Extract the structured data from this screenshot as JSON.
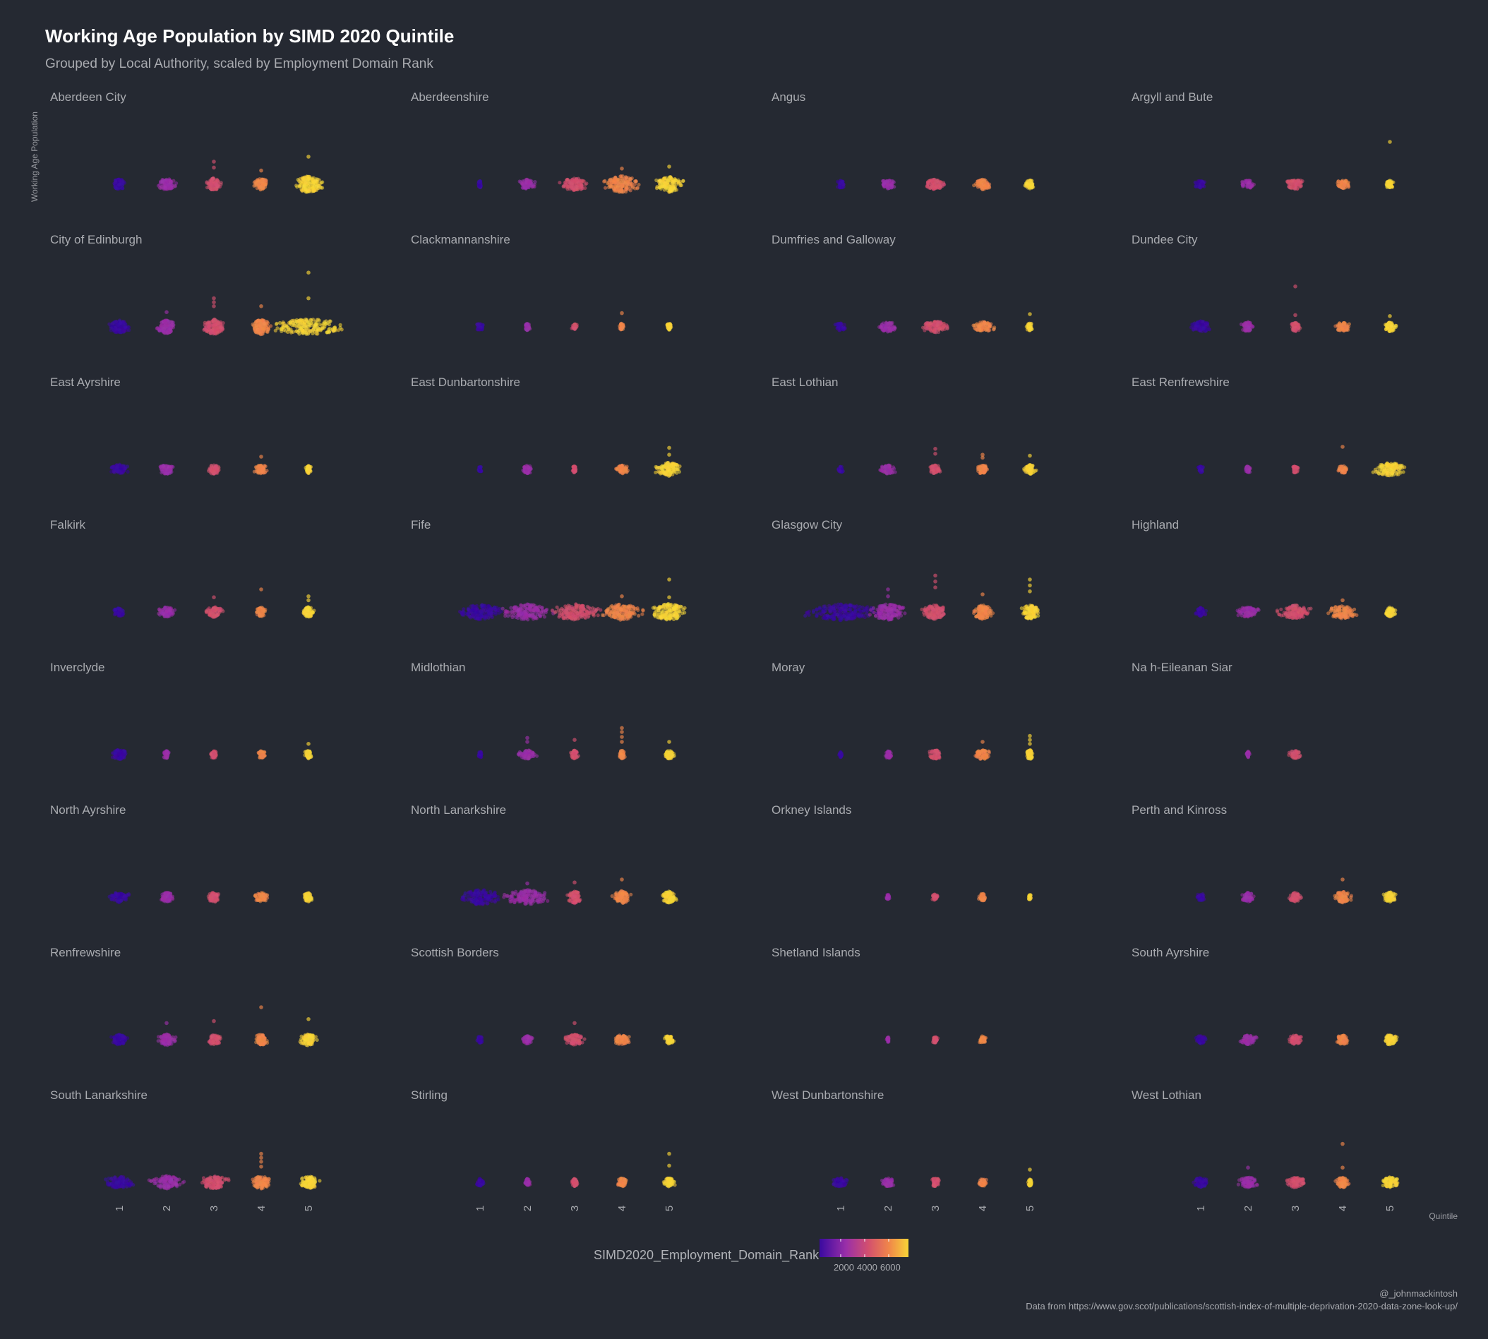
{
  "chart_data": {
    "type": "scatter",
    "title": "Working Age Population by SIMD 2020 Quintile",
    "subtitle": "Grouped by Local Authority, scaled by Employment Domain Rank",
    "ylabel": "Working Age Population",
    "xlabel": "Quintile",
    "x_categories": [
      "1",
      "2",
      "3",
      "4",
      "5"
    ],
    "legend": {
      "title": "SIMD2020_Employment_Domain_Rank",
      "ticks": [
        "2000",
        "4000",
        "6000"
      ],
      "position": "bottom",
      "colors": [
        "#3a0aa0",
        "#9a2fa8",
        "#d3506e",
        "#f0864a",
        "#f7d437"
      ]
    },
    "caption": [
      "@_johnmackintosh",
      "Data from https://www.gov.scot/publications/scottish-index-of-multiple-deprivation-2020-data-zone-look-up/"
    ],
    "grid": false,
    "facets": [
      {
        "name": "Aberdeen City",
        "spread": [
          0.35,
          0.45,
          0.4,
          0.4,
          0.8
        ],
        "density": [
          0.5,
          0.6,
          0.65,
          0.6,
          1.0
        ],
        "outliers": [
          [],
          [],
          [
            2.0,
            1.4
          ],
          [
            1.1
          ],
          [
            2.5
          ]
        ]
      },
      {
        "name": "Aberdeenshire",
        "spread": [
          0.1,
          0.45,
          0.7,
          1.0,
          0.75
        ],
        "density": [
          0.2,
          0.45,
          0.7,
          1.0,
          0.9
        ],
        "outliers": [
          [],
          [],
          [],
          [
            1.3
          ],
          [
            1.5
          ]
        ]
      },
      {
        "name": "Angus",
        "spread": [
          0.2,
          0.35,
          0.5,
          0.45,
          0.25
        ],
        "density": [
          0.25,
          0.4,
          0.5,
          0.5,
          0.35
        ],
        "outliers": [
          [],
          [],
          [],
          [],
          []
        ]
      },
      {
        "name": "Argyll and Bute",
        "spread": [
          0.3,
          0.35,
          0.5,
          0.35,
          0.25
        ],
        "density": [
          0.25,
          0.3,
          0.45,
          0.35,
          0.25
        ],
        "outliers": [
          [],
          [],
          [],
          [],
          [
            4.0
          ]
        ]
      },
      {
        "name": "City of Edinburgh",
        "spread": [
          0.55,
          0.5,
          0.55,
          0.55,
          1.85
        ],
        "density": [
          0.7,
          0.75,
          0.9,
          0.95,
          1.0
        ],
        "outliers": [
          [],
          [
            1.2
          ],
          [
            2.6,
            2.2,
            1.8
          ],
          [
            1.8
          ],
          [
            5.2,
            2.6
          ]
        ]
      },
      {
        "name": "Clackmannanshire",
        "spread": [
          0.2,
          0.15,
          0.15,
          0.15,
          0.15
        ],
        "density": [
          0.2,
          0.2,
          0.15,
          0.2,
          0.2
        ],
        "outliers": [
          [],
          [],
          [],
          [
            1.1
          ],
          []
        ]
      },
      {
        "name": "Dumfries and Galloway",
        "spread": [
          0.3,
          0.5,
          0.75,
          0.6,
          0.2
        ],
        "density": [
          0.25,
          0.45,
          0.6,
          0.45,
          0.25
        ],
        "outliers": [
          [],
          [],
          [],
          [],
          [
            1.0
          ]
        ]
      },
      {
        "name": "Dundee City",
        "spread": [
          0.5,
          0.35,
          0.25,
          0.4,
          0.35
        ],
        "density": [
          0.6,
          0.45,
          0.4,
          0.35,
          0.4
        ],
        "outliers": [
          [],
          [],
          [
            3.8,
            0.9
          ],
          [],
          [
            0.8
          ]
        ]
      },
      {
        "name": "East Ayrshire",
        "spread": [
          0.5,
          0.4,
          0.3,
          0.35,
          0.15
        ],
        "density": [
          0.45,
          0.4,
          0.45,
          0.35,
          0.3
        ],
        "outliers": [
          [],
          [],
          [],
          [
            1.0
          ],
          []
        ]
      },
      {
        "name": "East Dunbartonshire",
        "spread": [
          0.1,
          0.25,
          0.1,
          0.3,
          0.75
        ],
        "density": [
          0.1,
          0.3,
          0.2,
          0.35,
          0.8
        ],
        "outliers": [
          [],
          [],
          [],
          [],
          [
            1.9,
            1.2
          ]
        ]
      },
      {
        "name": "East Lothian",
        "spread": [
          0.15,
          0.4,
          0.3,
          0.3,
          0.35
        ],
        "density": [
          0.15,
          0.4,
          0.35,
          0.4,
          0.45
        ],
        "outliers": [
          [],
          [],
          [
            1.8,
            1.3
          ],
          [
            1.2,
            0.9
          ],
          [
            1.1
          ]
        ]
      },
      {
        "name": "East Renfrewshire",
        "spread": [
          0.15,
          0.15,
          0.15,
          0.25,
          0.85
        ],
        "density": [
          0.15,
          0.2,
          0.2,
          0.25,
          0.75
        ],
        "outliers": [
          [],
          [],
          [],
          [
            2.0
          ],
          []
        ]
      },
      {
        "name": "Falkirk",
        "spread": [
          0.3,
          0.45,
          0.45,
          0.25,
          0.3
        ],
        "density": [
          0.35,
          0.45,
          0.5,
          0.4,
          0.5
        ],
        "outliers": [
          [],
          [],
          [
            1.2
          ],
          [
            2.0
          ],
          [
            1.3,
            0.9
          ]
        ]
      },
      {
        "name": "Fife",
        "spread": [
          1.05,
          1.3,
          1.35,
          1.1,
          0.95
        ],
        "density": [
          0.9,
          0.95,
          0.95,
          0.95,
          1.0
        ],
        "outliers": [
          [],
          [],
          [],
          [
            1.3
          ],
          [
            3.0,
            1.2
          ]
        ]
      },
      {
        "name": "Glasgow City",
        "spread": [
          2.0,
          1.0,
          0.65,
          0.55,
          0.5
        ],
        "density": [
          1.0,
          0.95,
          0.85,
          0.8,
          0.8
        ],
        "outliers": [
          [],
          [
            2.0,
            1.3
          ],
          [
            3.4,
            2.8,
            2.2,
            -0.8
          ],
          [
            1.5,
            -0.8
          ],
          [
            3.0,
            2.4,
            1.8,
            -0.8
          ]
        ]
      },
      {
        "name": "Highland",
        "spread": [
          0.3,
          0.6,
          0.95,
          0.8,
          0.3
        ],
        "density": [
          0.35,
          0.5,
          0.75,
          0.7,
          0.4
        ],
        "outliers": [
          [],
          [],
          [],
          [
            0.9
          ],
          []
        ]
      },
      {
        "name": "Inverclyde",
        "spread": [
          0.45,
          0.15,
          0.2,
          0.2,
          0.2
        ],
        "density": [
          0.45,
          0.3,
          0.25,
          0.25,
          0.3
        ],
        "outliers": [
          [],
          [],
          [],
          [],
          [
            0.8
          ]
        ]
      },
      {
        "name": "Midlothian",
        "spread": [
          0.1,
          0.5,
          0.2,
          0.15,
          0.25
        ],
        "density": [
          0.15,
          0.4,
          0.35,
          0.35,
          0.35
        ],
        "outliers": [
          [],
          [
            1.4,
            1.0
          ],
          [
            1.2
          ],
          [
            2.4,
            2.0,
            1.5,
            1.0
          ],
          [
            1.0
          ]
        ]
      },
      {
        "name": "Moray",
        "spread": [
          0.1,
          0.2,
          0.35,
          0.45,
          0.2
        ],
        "density": [
          0.1,
          0.25,
          0.4,
          0.45,
          0.45
        ],
        "outliers": [
          [],
          [],
          [],
          [
            1.0
          ],
          [
            1.6,
            1.2,
            0.8
          ]
        ]
      },
      {
        "name": "Na h-Eileanan Siar",
        "spread": [
          0,
          0.1,
          0.35,
          0,
          0
        ],
        "density": [
          0,
          0.15,
          0.3,
          0,
          0
        ],
        "outliers": [
          [],
          [],
          [],
          [],
          []
        ]
      },
      {
        "name": "North Ayrshire",
        "spread": [
          0.55,
          0.35,
          0.3,
          0.35,
          0.3
        ],
        "density": [
          0.5,
          0.45,
          0.45,
          0.4,
          0.35
        ],
        "outliers": [
          [],
          [],
          [],
          [],
          []
        ]
      },
      {
        "name": "North Lanarkshire",
        "spread": [
          1.1,
          1.2,
          0.35,
          0.45,
          0.4
        ],
        "density": [
          0.9,
          0.85,
          0.65,
          0.7,
          0.6
        ],
        "outliers": [
          [],
          [
            1.1
          ],
          [
            1.2
          ],
          [
            1.5
          ],
          []
        ]
      },
      {
        "name": "Orkney Islands",
        "spread": [
          0,
          0.1,
          0.15,
          0.2,
          0.05
        ],
        "density": [
          0,
          0.12,
          0.15,
          0.25,
          0.05
        ],
        "outliers": [
          [],
          [],
          [],
          [],
          []
        ]
      },
      {
        "name": "Perth and Kinross",
        "spread": [
          0.2,
          0.35,
          0.35,
          0.45,
          0.35
        ],
        "density": [
          0.25,
          0.4,
          0.4,
          0.55,
          0.5
        ],
        "outliers": [
          [],
          [],
          [],
          [
            1.5
          ],
          []
        ]
      },
      {
        "name": "Renfrewshire",
        "spread": [
          0.45,
          0.5,
          0.35,
          0.4,
          0.45
        ],
        "density": [
          0.5,
          0.55,
          0.45,
          0.55,
          0.6
        ],
        "outliers": [
          [],
          [
            1.4
          ],
          [
            1.6
          ],
          [
            3.0
          ],
          [
            1.8
          ]
        ]
      },
      {
        "name": "Scottish Borders",
        "spread": [
          0.15,
          0.3,
          0.55,
          0.45,
          0.25
        ],
        "density": [
          0.2,
          0.3,
          0.5,
          0.45,
          0.35
        ],
        "outliers": [
          [],
          [],
          [
            1.4
          ],
          [],
          []
        ]
      },
      {
        "name": "Shetland Islands",
        "spread": [
          0,
          0.05,
          0.15,
          0.2,
          0
        ],
        "density": [
          0,
          0.08,
          0.2,
          0.25,
          0
        ],
        "outliers": [
          [],
          [],
          [],
          [],
          []
        ]
      },
      {
        "name": "South Ayrshire",
        "spread": [
          0.3,
          0.45,
          0.35,
          0.35,
          0.4
        ],
        "density": [
          0.3,
          0.4,
          0.4,
          0.4,
          0.45
        ],
        "outliers": [
          [],
          [],
          [],
          [],
          []
        ]
      },
      {
        "name": "South Lanarkshire",
        "spread": [
          0.75,
          0.85,
          0.85,
          0.55,
          0.55
        ],
        "density": [
          0.65,
          0.7,
          0.7,
          0.7,
          0.7
        ],
        "outliers": [
          [],
          [],
          [],
          [
            2.6,
            2.2,
            1.8,
            1.3
          ],
          []
        ]
      },
      {
        "name": "Stirling",
        "spread": [
          0.2,
          0.15,
          0.15,
          0.25,
          0.3
        ],
        "density": [
          0.25,
          0.25,
          0.3,
          0.35,
          0.4
        ],
        "outliers": [
          [],
          [],
          [],
          [],
          [
            2.6,
            1.4
          ]
        ]
      },
      {
        "name": "West Dunbartonshire",
        "spread": [
          0.4,
          0.35,
          0.25,
          0.2,
          0.1
        ],
        "density": [
          0.4,
          0.35,
          0.35,
          0.3,
          0.25
        ],
        "outliers": [
          [],
          [],
          [],
          [],
          [
            1.0
          ]
        ]
      },
      {
        "name": "West Lothian",
        "spread": [
          0.4,
          0.55,
          0.5,
          0.35,
          0.45
        ],
        "density": [
          0.4,
          0.5,
          0.5,
          0.5,
          0.5
        ],
        "outliers": [
          [],
          [
            1.2
          ],
          [],
          [
            3.6,
            1.2
          ],
          []
        ]
      }
    ]
  }
}
